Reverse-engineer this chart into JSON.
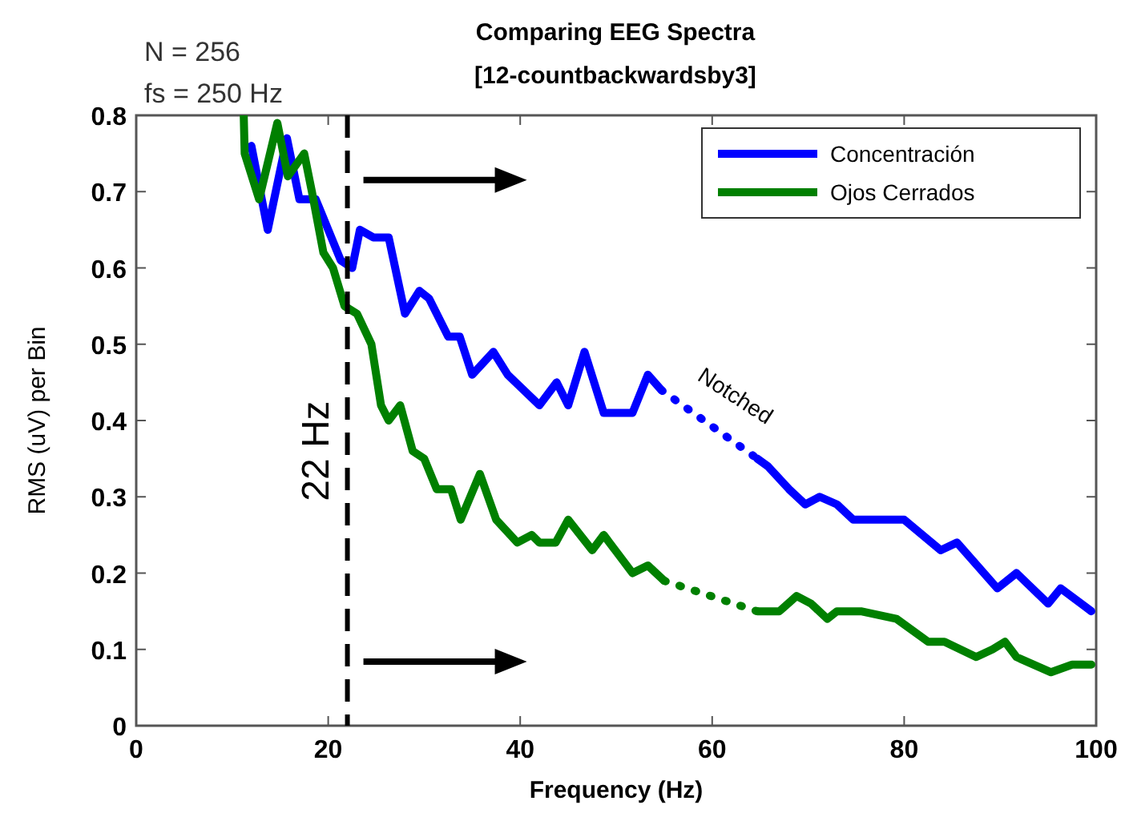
{
  "chart_data": {
    "type": "line",
    "title": "Comparing EEG Spectra",
    "subtitle": "[12-countbackwardsby3]",
    "xlabel": "Frequency (Hz)",
    "ylabel": "RMS (uV) per Bin",
    "annotations": [
      "N = 256",
      "fs = 250 Hz",
      "Notched"
    ],
    "xlim": [
      0,
      100
    ],
    "ylim": [
      0,
      0.8
    ],
    "xticks": [
      0,
      20,
      40,
      60,
      80,
      100
    ],
    "yticks": [
      0,
      0.1,
      0.2,
      0.3,
      0.4,
      0.5,
      0.6,
      0.7,
      0.8
    ],
    "grid": false,
    "legend": "top right",
    "marker": "none",
    "ref_lines": [
      {
        "axis": "x",
        "value": 22,
        "label": "22 Hz",
        "color": "#000000",
        "line_style": "dashed"
      }
    ],
    "series": [
      {
        "color": "#0000ff",
        "line_style": "dotted",
        "x": [
          54.7,
          64.7
        ],
        "values": [
          0.44,
          0.35
        ]
      },
      {
        "color": "#008000",
        "line_style": "dotted",
        "x": [
          55,
          64.7
        ],
        "values": [
          0.19,
          0.15
        ]
      },
      {
        "name": "Concentración",
        "color": "#0000ff",
        "line_style": "solid",
        "x": [
          12,
          13.7,
          15.7,
          17,
          18.7,
          21.3,
          22.5,
          23.3,
          24.7,
          26.3,
          28,
          29.5,
          30.5,
          32.5,
          33.7,
          35,
          37.2,
          38.7,
          42,
          43.8,
          45,
          46.7,
          48.7,
          51.7,
          53.3,
          54.7,
          60,
          64.7,
          65.8,
          68,
          69.7,
          71.2,
          73,
          74.7,
          77,
          80,
          83.8,
          85.5,
          89.7,
          91.7,
          95,
          96.3,
          99.5
        ],
        "values": [
          0.76,
          0.65,
          0.77,
          0.69,
          0.69,
          0.61,
          0.6,
          0.65,
          0.64,
          0.64,
          0.54,
          0.57,
          0.56,
          0.51,
          0.51,
          0.46,
          0.49,
          0.46,
          0.42,
          0.45,
          0.42,
          0.49,
          0.41,
          0.41,
          0.46,
          0.44,
          null,
          0.35,
          0.34,
          0.31,
          0.29,
          0.3,
          0.29,
          0.27,
          0.27,
          0.27,
          0.23,
          0.24,
          0.18,
          0.2,
          0.16,
          0.18,
          0.15
        ]
      },
      {
        "name": "Ojos Cerrados",
        "color": "#008000",
        "line_style": "solid",
        "x": [
          11.2,
          11.3,
          12.8,
          14.7,
          15.8,
          17.5,
          18.3,
          19.5,
          20.5,
          21.7,
          23,
          24.5,
          25.5,
          26.3,
          27.5,
          28.8,
          30,
          31.3,
          32.8,
          33.8,
          35.8,
          37.5,
          39.7,
          41.2,
          42,
          43.7,
          45,
          47.5,
          48.7,
          51.7,
          53.3,
          55,
          60,
          64.7,
          67,
          68.8,
          70.3,
          72,
          73,
          75.5,
          79.2,
          82.5,
          84.2,
          87.5,
          89.2,
          90.5,
          91.7,
          95.3,
          97.5,
          99.5
        ],
        "values": [
          0.8,
          0.75,
          0.69,
          0.79,
          0.72,
          0.75,
          0.7,
          0.62,
          0.6,
          0.55,
          0.54,
          0.5,
          0.42,
          0.4,
          0.42,
          0.36,
          0.35,
          0.31,
          0.31,
          0.27,
          0.33,
          0.27,
          0.24,
          0.25,
          0.24,
          0.24,
          0.27,
          0.23,
          0.25,
          0.2,
          0.21,
          0.19,
          null,
          0.15,
          0.15,
          0.17,
          0.16,
          0.14,
          0.15,
          0.15,
          0.14,
          0.11,
          0.11,
          0.09,
          0.1,
          0.11,
          0.09,
          0.07,
          0.08,
          0.08
        ]
      }
    ]
  }
}
